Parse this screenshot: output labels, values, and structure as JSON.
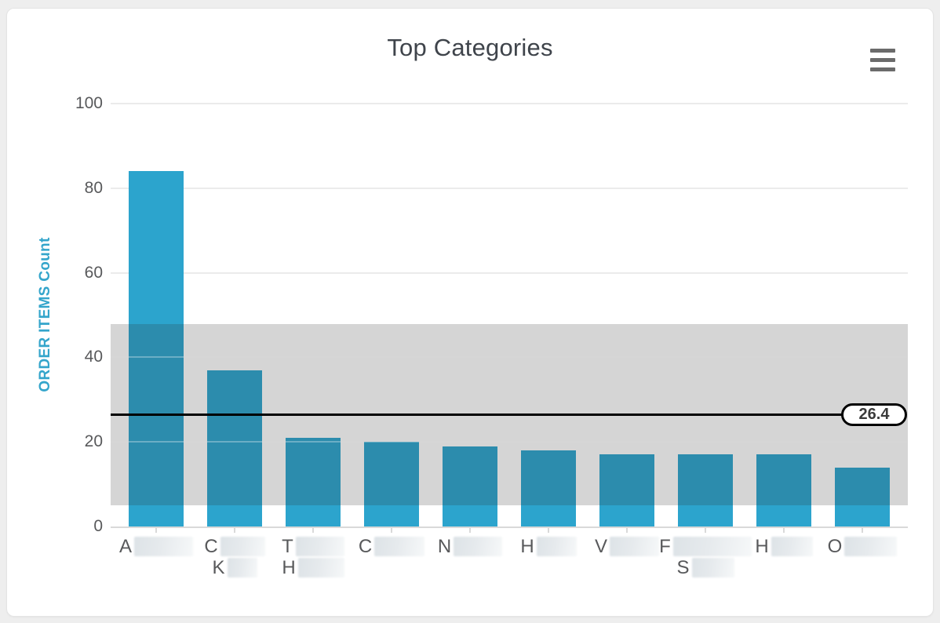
{
  "card": {
    "menu_tooltip": "Chart context menu"
  },
  "colors": {
    "page_background": "#EEEEEE",
    "card_background": "#FFFFFF",
    "card_border": "#E4E4E4",
    "title_text": "#3F444B",
    "y_axis_title_text": "#34A5CB",
    "tick_label_text": "#58595B",
    "grid_line": "#EBEBEB",
    "axis_line": "#D9D9D9",
    "bar": "#2CA4CD",
    "band_overlay": "rgba(45,45,45,0.2)",
    "mean_line": "#000000",
    "pill_border": "#000000",
    "pill_background": "#FFFFFF",
    "pill_text": "#3A3A3A",
    "menu_icon": "#6B6B6B",
    "redaction_box_dark": "#DDE3E7",
    "redaction_box_light": "#F6F8F9"
  },
  "chart_data": {
    "type": "bar",
    "title": "Top Categories",
    "xlabel": "",
    "ylabel": "ORDER ITEMS Count",
    "ylim": [
      0,
      100
    ],
    "y_ticks": [
      0,
      20,
      40,
      60,
      80,
      100
    ],
    "grid": true,
    "legend": "none",
    "values": [
      84,
      37,
      21,
      20,
      19,
      18,
      17,
      17,
      17,
      14
    ],
    "categories": [
      {
        "lines": [
          {
            "visible_text": "A",
            "redacted_width": 75
          }
        ]
      },
      {
        "lines": [
          {
            "visible_text": "C",
            "redacted_width": 57
          },
          {
            "visible_text": "K",
            "redacted_width": 38
          }
        ]
      },
      {
        "lines": [
          {
            "visible_text": "T",
            "redacted_width": 62
          },
          {
            "visible_text": "H",
            "redacted_width": 59
          }
        ]
      },
      {
        "lines": [
          {
            "visible_text": "C",
            "redacted_width": 64
          }
        ]
      },
      {
        "lines": [
          {
            "visible_text": "N",
            "redacted_width": 62
          }
        ]
      },
      {
        "lines": [
          {
            "visible_text": "H",
            "redacted_width": 51
          }
        ]
      },
      {
        "lines": [
          {
            "visible_text": "V",
            "redacted_width": 63
          }
        ]
      },
      {
        "lines": [
          {
            "visible_text": "F",
            "redacted_width": 100
          },
          {
            "visible_text": "S",
            "redacted_width": 54
          }
        ]
      },
      {
        "lines": [
          {
            "visible_text": "H",
            "redacted_width": 53
          }
        ]
      },
      {
        "lines": [
          {
            "visible_text": "O",
            "redacted_width": 67
          }
        ]
      }
    ],
    "categories_note": "Category label text is blurred/redacted in the source image; only the leading letters are legible.",
    "mean_line": {
      "value": 26.4,
      "label": "26.4"
    },
    "band": {
      "from": 5.0,
      "to": 47.8
    }
  }
}
